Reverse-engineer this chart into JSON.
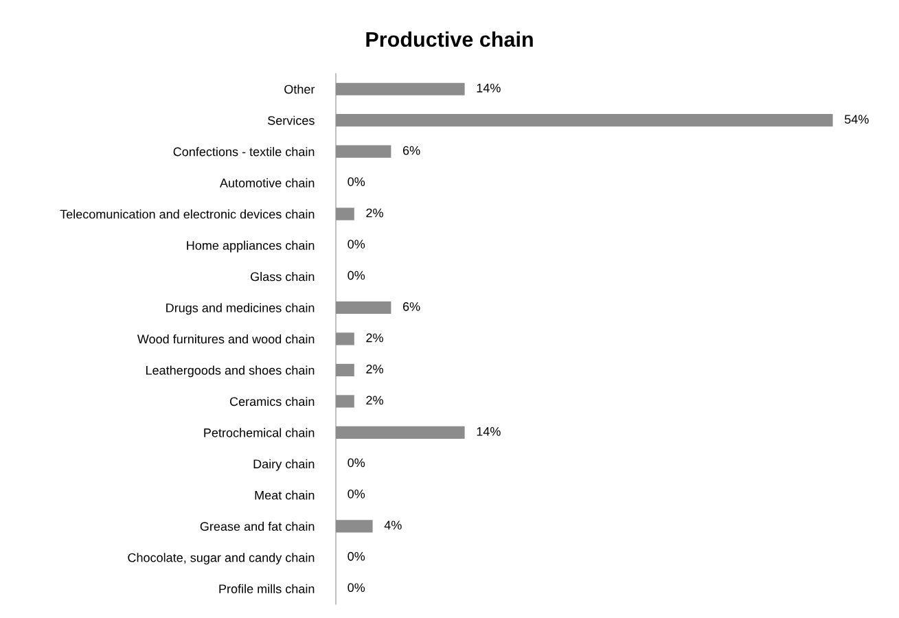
{
  "chart_data": {
    "type": "bar",
    "orientation": "horizontal",
    "title": "Productive chain",
    "categories": [
      "Other",
      "Services",
      "Confections - textile chain",
      "Automotive chain",
      "Telecomunication and electronic devices chain",
      "Home appliances chain",
      "Glass chain",
      "Drugs and medicines chain",
      "Wood furnitures and wood chain",
      "Leathergoods and shoes chain",
      "Ceramics chain",
      "Petrochemical chain",
      "Dairy chain",
      "Meat chain",
      "Grease and fat chain",
      "Chocolate, sugar and candy chain",
      "Profile mills chain"
    ],
    "values": [
      14,
      54,
      6,
      0,
      2,
      0,
      0,
      6,
      2,
      2,
      2,
      14,
      0,
      0,
      4,
      0,
      0
    ],
    "value_labels": [
      "14%",
      "54%",
      "6%",
      "0%",
      "2%",
      "0%",
      "0%",
      "6%",
      "2%",
      "2%",
      "2%",
      "14%",
      "0%",
      "0%",
      "4%",
      "0%",
      "0%"
    ],
    "color": "#8c8c8c",
    "tick_labels": "y",
    "grid": false,
    "legend": false
  }
}
